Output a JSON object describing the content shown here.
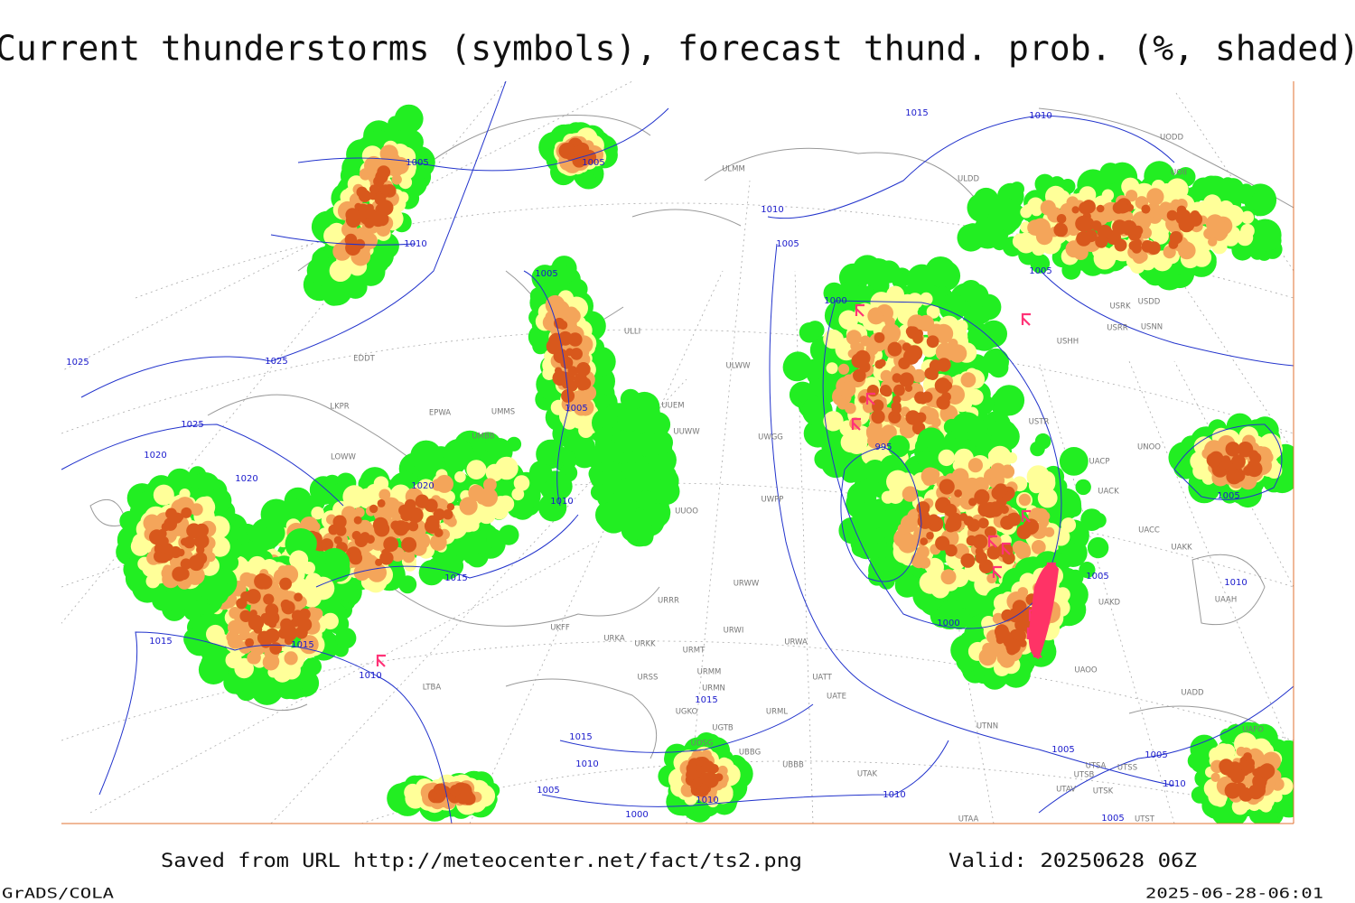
{
  "title": "Current thunderstorms (symbols), forecast thund. prob. (%, shaded)",
  "footer": {
    "source": "Saved from URL http://meteocenter.net/fact/ts2.png",
    "valid": "Valid: 20250628 06Z",
    "software": "GrADS/COLA",
    "timestamp": "2025-06-28-06:01"
  },
  "map": {
    "isobar_labels": [
      "1005",
      "1005",
      "1010",
      "1015",
      "1010",
      "1010",
      "1005",
      "1005",
      "1000",
      "1005",
      "1025",
      "1025",
      "1005",
      "1025",
      "1020",
      "995",
      "1020",
      "1020",
      "1010",
      "1005",
      "1015",
      "1005",
      "1010",
      "1000",
      "1015",
      "1015",
      "1010",
      "1015",
      "1015",
      "1010",
      "1005",
      "1005",
      "1005",
      "1010",
      "1010",
      "1010",
      "1000",
      "1005"
    ],
    "station_labels": [
      "ULMM",
      "ULDD",
      "UODD",
      "UOII",
      "USRK",
      "USDD",
      "USRR",
      "USNN",
      "USHH",
      "ULLI",
      "ULWW",
      "EDDT",
      "EPWA",
      "UUEM",
      "UUWW",
      "UWGG",
      "UMMS",
      "UMBB",
      "LKPR",
      "LOWW",
      "UUOO",
      "UWPP",
      "USTR",
      "UNOO",
      "UACP",
      "UACK",
      "UACC",
      "UAKK",
      "UAAH",
      "UAKD",
      "URWW",
      "URRR",
      "URWI",
      "URWA",
      "UATT",
      "UATE",
      "UKFF",
      "URKA",
      "URKK",
      "URMT",
      "URSS",
      "URMM",
      "URMN",
      "UGKO",
      "UGTB",
      "UDSG",
      "UBBG",
      "UBBB",
      "UTAK",
      "UTAA",
      "UTNN",
      "UAOO",
      "UADD",
      "UAFO",
      "URML",
      "LTBA",
      "UTSA",
      "UTSS",
      "UTSB",
      "UTAV",
      "UTSK",
      "UTST"
    ]
  }
}
